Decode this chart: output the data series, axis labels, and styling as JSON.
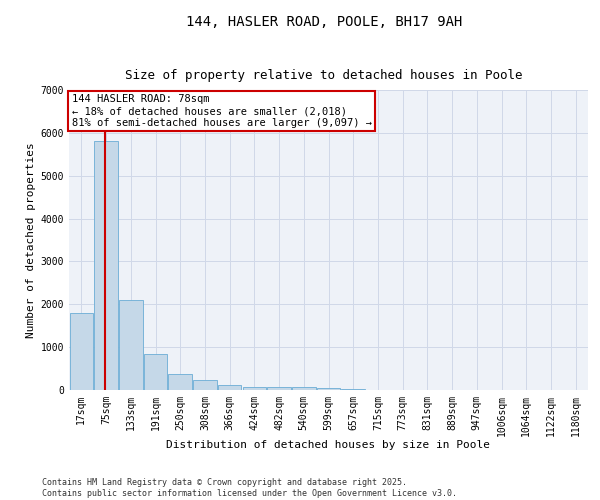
{
  "title": "144, HASLER ROAD, POOLE, BH17 9AH",
  "subtitle": "Size of property relative to detached houses in Poole",
  "xlabel": "Distribution of detached houses by size in Poole",
  "ylabel": "Number of detached properties",
  "categories": [
    "17sqm",
    "75sqm",
    "133sqm",
    "191sqm",
    "250sqm",
    "308sqm",
    "366sqm",
    "424sqm",
    "482sqm",
    "540sqm",
    "599sqm",
    "657sqm",
    "715sqm",
    "773sqm",
    "831sqm",
    "889sqm",
    "947sqm",
    "1006sqm",
    "1064sqm",
    "1122sqm",
    "1180sqm"
  ],
  "values": [
    1800,
    5820,
    2100,
    850,
    380,
    230,
    120,
    80,
    80,
    60,
    45,
    20,
    10,
    5,
    3,
    2,
    1,
    1,
    1,
    0,
    0
  ],
  "bar_color": "#c5d8e8",
  "bar_edge_color": "#6aadd5",
  "annotation_text": "144 HASLER ROAD: 78sqm\n← 18% of detached houses are smaller (2,018)\n81% of semi-detached houses are larger (9,097) →",
  "vline_color": "#cc0000",
  "annotation_box_color": "#cc0000",
  "grid_color": "#d0d8e8",
  "background_color": "#eef2f8",
  "footer_text": "Contains HM Land Registry data © Crown copyright and database right 2025.\nContains public sector information licensed under the Open Government Licence v3.0.",
  "ylim": [
    0,
    7000
  ],
  "yticks": [
    0,
    1000,
    2000,
    3000,
    4000,
    5000,
    6000,
    7000
  ],
  "title_fontsize": 10,
  "subtitle_fontsize": 9,
  "axis_label_fontsize": 8,
  "tick_fontsize": 7,
  "annotation_fontsize": 7.5,
  "footer_fontsize": 6
}
